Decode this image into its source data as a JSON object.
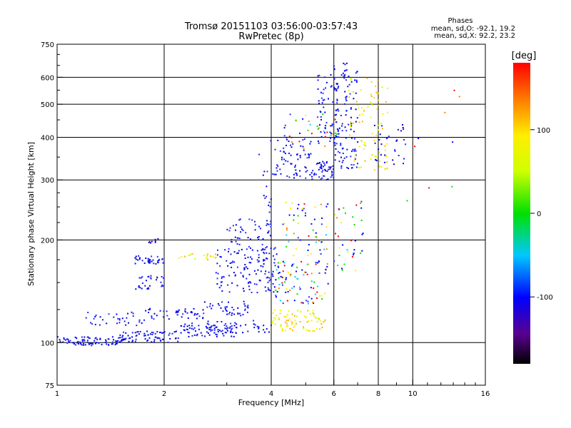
{
  "chart_data": {
    "type": "scatter",
    "title": "Tromsø 20151103 03:56:00-03:57:43",
    "subtitle": "RwPretec (8p)",
    "xlabel": "Frequency [MHz]",
    "ylabel": "Stationary phase Virtual Height [km]",
    "x_scale": "log",
    "y_scale": "log",
    "xlim": [
      1,
      16
    ],
    "ylim": [
      75,
      750
    ],
    "x_ticks": [
      "1",
      "2",
      "4",
      "6",
      "8",
      "10",
      "16"
    ],
    "y_ticks": [
      "75",
      "100",
      "200",
      "300",
      "400",
      "500",
      "600",
      "750"
    ],
    "grid": true,
    "stats": {
      "title": "Phases",
      "line_o": "mean, sd,O: -92.1, 19.2",
      "line_x": "mean, sd,X: 92.2, 23.2"
    },
    "colorbar": {
      "label": "[deg]",
      "ticks": [
        "100",
        "0",
        "-100"
      ],
      "tick_values": [
        100,
        0,
        -100
      ],
      "range": [
        -180,
        180
      ]
    },
    "groups": [
      {
        "f": [
          1.0,
          1.55
        ],
        "h": [
          98,
          104
        ],
        "n": 90,
        "c": "blue"
      },
      {
        "f": [
          1.5,
          2.2
        ],
        "h": [
          100,
          108
        ],
        "n": 70,
        "c": "blue"
      },
      {
        "f": [
          2.2,
          3.2
        ],
        "h": [
          104,
          114
        ],
        "n": 70,
        "c": "blue"
      },
      {
        "f": [
          2.6,
          4.0
        ],
        "h": [
          107,
          116
        ],
        "n": 45,
        "c": "blue"
      },
      {
        "f": [
          1.2,
          1.8
        ],
        "h": [
          112,
          124
        ],
        "n": 35,
        "c": "blue"
      },
      {
        "f": [
          1.8,
          2.6
        ],
        "h": [
          117,
          126
        ],
        "n": 45,
        "c": "blue"
      },
      {
        "f": [
          2.6,
          3.5
        ],
        "h": [
          120,
          132
        ],
        "n": 40,
        "c": "blue"
      },
      {
        "f": [
          1.65,
          2.0
        ],
        "h": [
          143,
          157
        ],
        "n": 30,
        "c": "blue"
      },
      {
        "f": [
          1.65,
          2.0
        ],
        "h": [
          170,
          180
        ],
        "n": 35,
        "c": "blue"
      },
      {
        "f": [
          1.8,
          1.95
        ],
        "h": [
          195,
          202
        ],
        "n": 8,
        "c": "purple"
      },
      {
        "f": [
          2.2,
          2.8
        ],
        "h": [
          174,
          182
        ],
        "n": 18,
        "c": "yellow"
      },
      {
        "f": [
          2.8,
          4.2
        ],
        "h": [
          140,
          190
        ],
        "n": 130,
        "c": "blue"
      },
      {
        "f": [
          3.0,
          4.0
        ],
        "h": [
          185,
          230
        ],
        "n": 45,
        "c": "blue"
      },
      {
        "f": [
          3.7,
          4.0
        ],
        "h": [
          150,
          410
        ],
        "n": 30,
        "c": "blue"
      },
      {
        "f": [
          4.0,
          5.7
        ],
        "h": [
          108,
          125
        ],
        "n": 80,
        "c": "yellow"
      },
      {
        "f": [
          4.1,
          5.8
        ],
        "h": [
          130,
          175
        ],
        "n": 90,
        "c": "mixed"
      },
      {
        "f": [
          4.3,
          5.8
        ],
        "h": [
          180,
          260
        ],
        "n": 55,
        "c": "mixed"
      },
      {
        "f": [
          4.0,
          5.2
        ],
        "h": [
          300,
          400
        ],
        "n": 70,
        "c": "blue"
      },
      {
        "f": [
          4.2,
          6.2
        ],
        "h": [
          370,
          470
        ],
        "n": 40,
        "c": "mixed"
      },
      {
        "f": [
          5.2,
          6.0
        ],
        "h": [
          300,
          340
        ],
        "n": 50,
        "c": "blue"
      },
      {
        "f": [
          5.4,
          6.2
        ],
        "h": [
          380,
          610
        ],
        "n": 60,
        "c": "blue"
      },
      {
        "f": [
          6.0,
          7.3
        ],
        "h": [
          160,
          260
        ],
        "n": 40,
        "c": "mixed"
      },
      {
        "f": [
          6.0,
          7.0
        ],
        "h": [
          320,
          660
        ],
        "n": 110,
        "c": "blue"
      },
      {
        "f": [
          6.6,
          8.5
        ],
        "h": [
          320,
          600
        ],
        "n": 80,
        "c": "yellow"
      },
      {
        "f": [
          7.8,
          9.6
        ],
        "h": [
          330,
          440
        ],
        "n": 30,
        "c": "blue"
      },
      {
        "f": [
          9.5,
          14.0
        ],
        "h": [
          200,
          560
        ],
        "n": 10,
        "c": "mixed"
      }
    ]
  }
}
